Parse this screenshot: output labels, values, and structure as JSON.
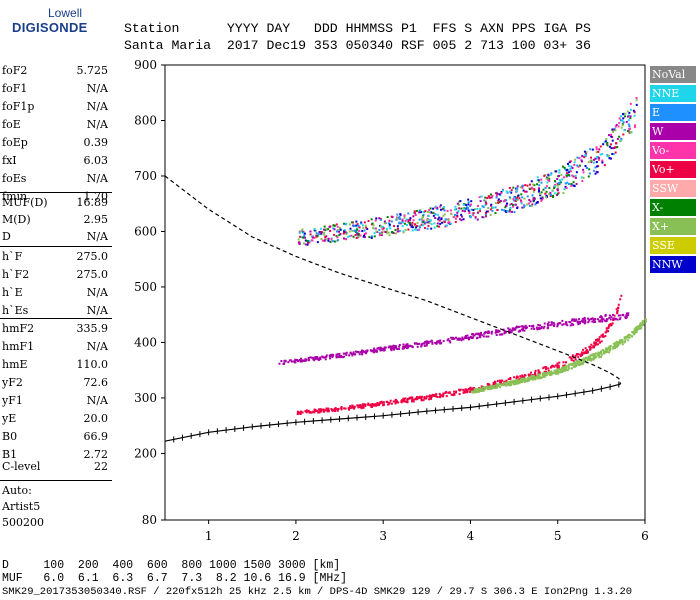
{
  "logo": {
    "line1": "Lowell",
    "line2": "DIGISONDE"
  },
  "header": {
    "line1": "Station      YYYY DAY   DDD HHMMSS P1  FFS S AXN PPS IGA PS",
    "line2": "Santa Maria  2017 Dec19 353 050340 RSF 005 2 713 100 03+ 36"
  },
  "params": [
    {
      "label": "foF2",
      "value": "5.725"
    },
    {
      "label": "foF1",
      "value": "N/A"
    },
    {
      "label": "foF1p",
      "value": "N/A"
    },
    {
      "label": "foE",
      "value": "N/A"
    },
    {
      "label": "foEp",
      "value": "0.39"
    },
    {
      "label": "fxI",
      "value": "6.03"
    },
    {
      "label": "foEs",
      "value": "N/A"
    },
    {
      "label": "fmin",
      "value": "1.70"
    },
    {
      "label": "MUF(D)",
      "value": "16.89"
    },
    {
      "label": "M(D)",
      "value": "2.95"
    },
    {
      "label": "D",
      "value": "N/A"
    },
    {
      "label": "h`F",
      "value": "275.0"
    },
    {
      "label": "h`F2",
      "value": "275.0"
    },
    {
      "label": "h`E",
      "value": "N/A"
    },
    {
      "label": "h`Es",
      "value": "N/A"
    },
    {
      "label": "hmF2",
      "value": "335.9"
    },
    {
      "label": "hmF1",
      "value": "N/A"
    },
    {
      "label": "hmE",
      "value": "110.0"
    },
    {
      "label": "yF2",
      "value": "72.6"
    },
    {
      "label": "yF1",
      "value": "N/A"
    },
    {
      "label": "yE",
      "value": "20.0"
    },
    {
      "label": "B0",
      "value": "66.9"
    },
    {
      "label": "B1",
      "value": "2.72"
    },
    {
      "label": "C-level",
      "value": "22"
    }
  ],
  "auto": {
    "line1": "Auto:",
    "line2": "Artist5",
    "line3": "500200"
  },
  "legend": [
    {
      "label": "NoVal",
      "color": "#888888"
    },
    {
      "label": "NNE",
      "color": "#1fd5ea"
    },
    {
      "label": "E",
      "color": "#1e90ff"
    },
    {
      "label": "W",
      "color": "#aa00aa"
    },
    {
      "label": "Vo-",
      "color": "#ff33aa"
    },
    {
      "label": "Vo+",
      "color": "#ee0044"
    },
    {
      "label": "SSW",
      "color": "#ffaaaa"
    },
    {
      "label": "X-",
      "color": "#008000"
    },
    {
      "label": "X+",
      "color": "#88c055"
    },
    {
      "label": "SSE",
      "color": "#cccc00"
    },
    {
      "label": "NNW",
      "color": "#0000cc"
    }
  ],
  "bottom": {
    "row1": "D     100  200  400  600  800 1000 1500 3000 [km]",
    "row2": "MUF   6.0  6.1  6.3  6.7  7.3  8.2 10.6 16.9 [MHz]",
    "footer": "SMK29_2017353050340.RSF / 220fx512h 25 kHz 2.5 km / DPS-4D SMK29 129 / 29.7 S 306.3 E Ion2Png 1.3.20"
  },
  "chart_data": {
    "type": "scatter",
    "title": "",
    "xlabel": "",
    "ylabel": "",
    "xlim": [
      0.5,
      6.0
    ],
    "ylim": [
      80,
      900
    ],
    "xticks": [
      1,
      2,
      3,
      4,
      5,
      6
    ],
    "yticks": [
      80,
      200,
      300,
      400,
      500,
      600,
      700,
      800,
      900
    ],
    "xtick_labels": [
      "1",
      "2",
      "3",
      "4",
      "5",
      "6"
    ],
    "ytick_labels": [
      "80",
      "200",
      "300",
      "400",
      "500",
      "600",
      "700",
      "800",
      "900"
    ],
    "traces": [
      {
        "name": "F2 ordinary",
        "color": "#ee0044",
        "points": [
          [
            2.0,
            275
          ],
          [
            2.5,
            282
          ],
          [
            3.0,
            292
          ],
          [
            3.5,
            303
          ],
          [
            4.0,
            317
          ],
          [
            4.5,
            335
          ],
          [
            5.0,
            360
          ],
          [
            5.3,
            385
          ],
          [
            5.5,
            410
          ],
          [
            5.62,
            440
          ],
          [
            5.7,
            470
          ],
          [
            5.73,
            500
          ]
        ]
      },
      {
        "name": "F2 extraordinary",
        "color": "#88c055",
        "points": [
          [
            4.0,
            313
          ],
          [
            4.5,
            330
          ],
          [
            5.0,
            350
          ],
          [
            5.5,
            382
          ],
          [
            5.8,
            410
          ],
          [
            6.0,
            440
          ]
        ]
      },
      {
        "name": "F2 second hop",
        "color": "#aa00aa",
        "points": [
          [
            1.8,
            365
          ],
          [
            2.5,
            378
          ],
          [
            3.0,
            390
          ],
          [
            3.5,
            400
          ],
          [
            4.0,
            412
          ],
          [
            4.5,
            425
          ],
          [
            5.0,
            435
          ],
          [
            5.5,
            445
          ],
          [
            5.8,
            450
          ]
        ]
      },
      {
        "name": "F2 multi hop",
        "color": "#aa00aa",
        "points": [
          [
            2.0,
            590
          ],
          [
            2.5,
            600
          ],
          [
            3.0,
            610
          ],
          [
            3.5,
            625
          ],
          [
            4.0,
            640
          ],
          [
            4.5,
            660
          ],
          [
            5.0,
            690
          ],
          [
            5.5,
            740
          ],
          [
            5.9,
            820
          ]
        ]
      }
    ],
    "profile": {
      "name": "electron density profile",
      "points": [
        [
          0.5,
          222
        ],
        [
          1.0,
          238
        ],
        [
          1.5,
          248
        ],
        [
          2.0,
          256
        ],
        [
          2.5,
          262
        ],
        [
          3.0,
          268
        ],
        [
          3.5,
          276
        ],
        [
          4.0,
          283
        ],
        [
          4.5,
          293
        ],
        [
          5.0,
          303
        ],
        [
          5.4,
          313
        ],
        [
          5.6,
          320
        ],
        [
          5.72,
          325
        ]
      ]
    },
    "muf_curve": {
      "name": "MUF curve",
      "points": [
        [
          0.5,
          700
        ],
        [
          1.0,
          640
        ],
        [
          1.5,
          590
        ],
        [
          2.0,
          555
        ],
        [
          2.5,
          525
        ],
        [
          3.0,
          500
        ],
        [
          3.5,
          475
        ],
        [
          4.0,
          445
        ],
        [
          4.5,
          415
        ],
        [
          5.0,
          385
        ],
        [
          5.4,
          360
        ],
        [
          5.6,
          345
        ],
        [
          5.7,
          335
        ],
        [
          5.72,
          325
        ]
      ]
    }
  }
}
